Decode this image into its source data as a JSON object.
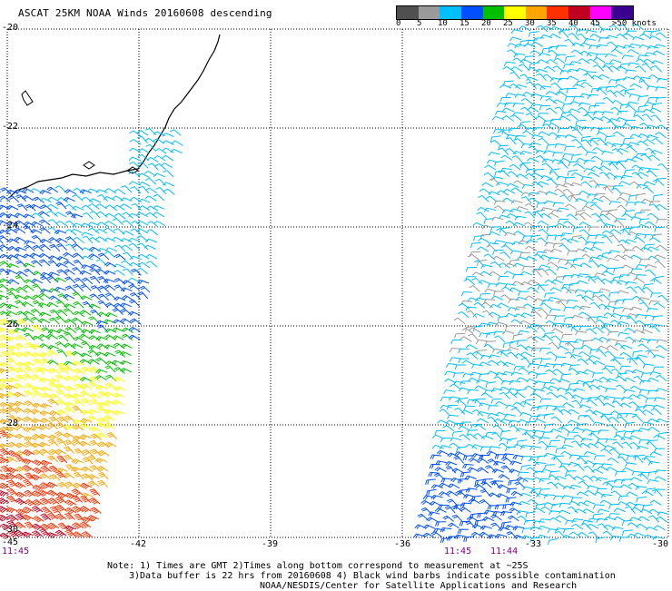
{
  "header": {
    "title": "ASCAT 25KM NOAA Winds 20160608 descending"
  },
  "legend": {
    "labels": [
      "0",
      "5",
      "10",
      "15",
      "20",
      "25",
      "30",
      "35",
      "40",
      "45",
      ">50 knots"
    ],
    "colors": [
      "#505050",
      "#9a9a9a",
      "#00bfff",
      "#0050ff",
      "#00c000",
      "#ffff00",
      "#ffa500",
      "#ff3000",
      "#c00020",
      "#ff00ff",
      "#3a0090"
    ],
    "units": "knots"
  },
  "axes": {
    "lat_labels": [
      "-20",
      "-22",
      "-24",
      "-26",
      "-28",
      "-30"
    ],
    "lon_labels": [
      "-45",
      "-42",
      "-39",
      "-36",
      "-33",
      "-30"
    ]
  },
  "times": [
    "11:45",
    "11:45",
    "11:44"
  ],
  "notes": [
    "Note: 1) Times are GMT 2)Times along bottom correspond to measurement at ~25S",
    "3)Data buffer is 22 hrs from 20160608 4) Black wind barbs indicate possible contamination",
    "NOAA/NESDIS/Center for Satellite Applications and Research"
  ]
}
